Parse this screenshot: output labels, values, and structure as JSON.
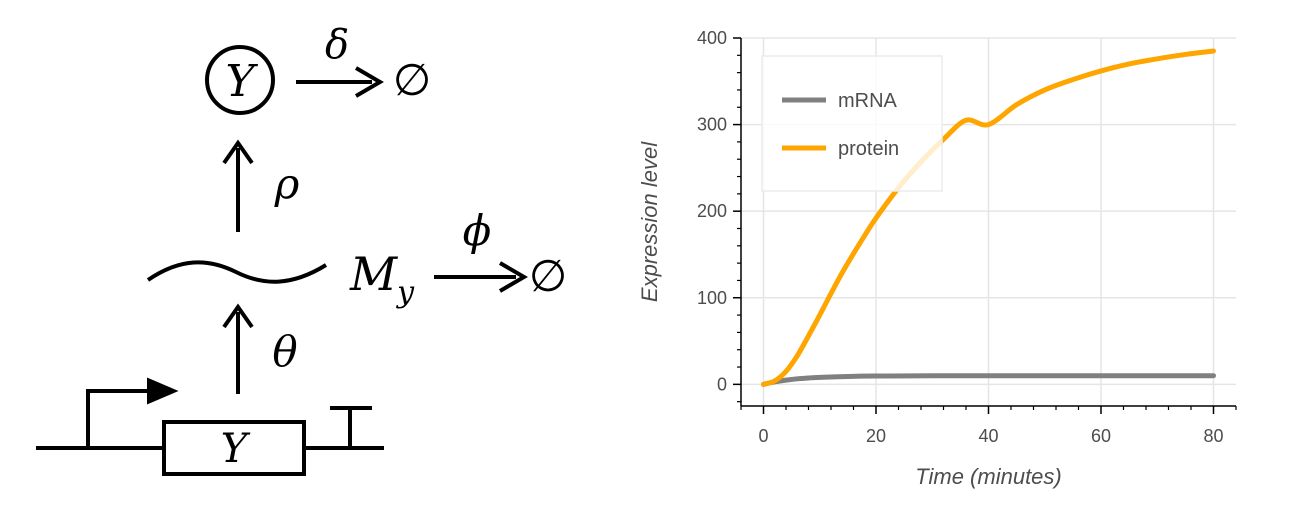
{
  "diagram": {
    "protein_symbol": "Y",
    "gene_label": "Y",
    "mrna_label_main": "M",
    "mrna_label_sub": "y",
    "degradation_protein_rate": "δ",
    "degradation_mrna_rate": "ϕ",
    "translation_rate": "ρ",
    "transcription_rate": "θ",
    "empty_set_1": "∅",
    "empty_set_2": "∅",
    "colors": {
      "line": "#000000"
    }
  },
  "chart_data": {
    "type": "line",
    "title": "",
    "xlabel": "Time (minutes)",
    "ylabel": "Expression level",
    "xlim": [
      -4,
      84
    ],
    "ylim": [
      -25,
      400
    ],
    "xticks": [
      0,
      20,
      40,
      60,
      80
    ],
    "yticks": [
      0,
      100,
      200,
      300,
      400
    ],
    "xtick_labels": [
      "0",
      "20",
      "40",
      "60",
      "80"
    ],
    "ytick_labels": [
      "0",
      "100",
      "200",
      "300",
      "400"
    ],
    "grid": true,
    "legend_position": "top-left",
    "series": [
      {
        "name": "mRNA",
        "color": "#808080",
        "x": [
          0,
          2,
          4,
          6,
          8,
          10,
          15,
          20,
          30,
          40,
          50,
          60,
          70,
          80
        ],
        "y": [
          0,
          2.9,
          4.9,
          6.4,
          7.4,
          8.1,
          9.1,
          9.6,
          9.9,
          10,
          10,
          10,
          10,
          10
        ]
      },
      {
        "name": "protein",
        "color": "#ffa500",
        "x": [
          0,
          2,
          4,
          6,
          8,
          10,
          12,
          14,
          16,
          18,
          20,
          24,
          28,
          32,
          36,
          40,
          45,
          50,
          55,
          60,
          65,
          70,
          75,
          80
        ],
        "y": [
          0,
          4,
          15,
          33,
          56,
          80,
          105,
          129,
          151,
          172,
          192,
          227,
          257,
          283,
          305,
          300,
          323,
          340,
          352,
          362,
          370,
          376,
          381,
          385
        ]
      }
    ]
  }
}
